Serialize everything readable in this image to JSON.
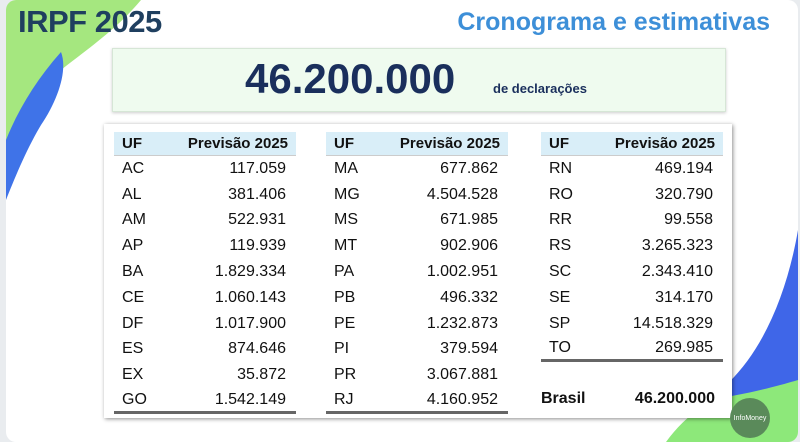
{
  "header": {
    "title": "IRPF 2025",
    "subtitle": "Cronograma e estimativas"
  },
  "banner": {
    "total": "46.200.000",
    "label": "de declarações"
  },
  "table_headers": {
    "uf": "UF",
    "value": "Previsão 2025"
  },
  "tables": [
    [
      [
        "AC",
        "117.059"
      ],
      [
        "AL",
        "381.406"
      ],
      [
        "AM",
        "522.931"
      ],
      [
        "AP",
        "119.939"
      ],
      [
        "BA",
        "1.829.334"
      ],
      [
        "CE",
        "1.060.143"
      ],
      [
        "DF",
        "1.017.900"
      ],
      [
        "ES",
        "874.646"
      ],
      [
        "EX",
        "35.872"
      ],
      [
        "GO",
        "1.542.149"
      ]
    ],
    [
      [
        "MA",
        "677.862"
      ],
      [
        "MG",
        "4.504.528"
      ],
      [
        "MS",
        "671.985"
      ],
      [
        "MT",
        "902.906"
      ],
      [
        "PA",
        "1.002.951"
      ],
      [
        "PB",
        "496.332"
      ],
      [
        "PE",
        "1.232.873"
      ],
      [
        "PI",
        "379.594"
      ],
      [
        "PR",
        "3.067.881"
      ],
      [
        "RJ",
        "4.160.952"
      ]
    ],
    [
      [
        "RN",
        "469.194"
      ],
      [
        "RO",
        "320.790"
      ],
      [
        "RR",
        "99.558"
      ],
      [
        "RS",
        "3.265.323"
      ],
      [
        "SC",
        "2.343.410"
      ],
      [
        "SE",
        "314.170"
      ],
      [
        "SP",
        "14.518.329"
      ],
      [
        "TO",
        "269.985"
      ]
    ]
  ],
  "total_row": {
    "label": "Brasil",
    "value": "46.200.000"
  },
  "logo": {
    "text": "InfoMoney"
  },
  "colors": {
    "title": "#1f3f5f",
    "subtitle": "#3d8fd8",
    "header_bg": "#d9eef8",
    "green": "#9be57c",
    "blue": "#3f73e8"
  }
}
